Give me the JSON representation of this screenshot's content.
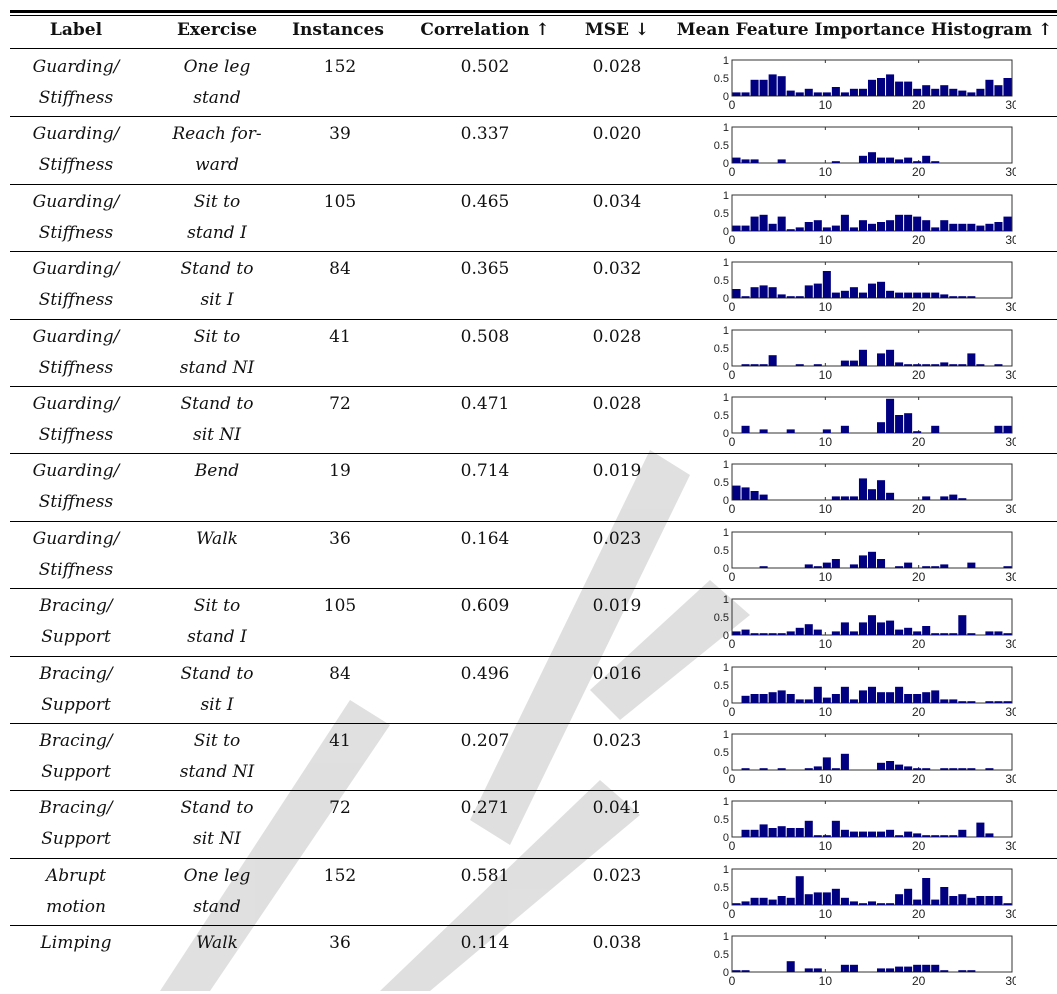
{
  "table": {
    "headers": {
      "label": "Label",
      "exercise": "Exercise",
      "instances": "Instances",
      "correlation": "Correlation ↑",
      "mse": "MSE ↓",
      "histogram": "Mean Feature Importance Histogram ↑"
    },
    "rows": [
      {
        "label1": "Guarding/",
        "label2": "Stiffness",
        "ex1": "One leg",
        "ex2": "stand",
        "instances": "152",
        "correlation": "0.502",
        "mse": "0.028",
        "hist": [
          0.1,
          0.1,
          0.45,
          0.45,
          0.6,
          0.55,
          0.15,
          0.1,
          0.2,
          0.1,
          0.1,
          0.25,
          0.1,
          0.2,
          0.2,
          0.45,
          0.5,
          0.6,
          0.4,
          0.4,
          0.2,
          0.3,
          0.2,
          0.3,
          0.2,
          0.15,
          0.1,
          0.2,
          0.45,
          0.3,
          0.5
        ]
      },
      {
        "label1": "Guarding/",
        "label2": "Stiffness",
        "ex1": "Reach for-",
        "ex2": "ward",
        "instances": "39",
        "correlation": "0.337",
        "mse": "0.020",
        "hist": [
          0.15,
          0.1,
          0.1,
          0,
          0,
          0.1,
          0,
          0,
          0,
          0,
          0,
          0.05,
          0,
          0,
          0.2,
          0.3,
          0.15,
          0.15,
          0.1,
          0.15,
          0.05,
          0.2,
          0.05,
          0,
          0,
          0,
          0,
          0,
          0,
          0,
          0
        ]
      },
      {
        "label1": "Guarding/",
        "label2": "Stiffness",
        "ex1": "Sit to",
        "ex2": "stand I",
        "instances": "105",
        "correlation": "0.465",
        "mse": "0.034",
        "hist": [
          0.15,
          0.15,
          0.4,
          0.45,
          0.2,
          0.4,
          0.05,
          0.1,
          0.25,
          0.3,
          0.1,
          0.15,
          0.45,
          0.1,
          0.3,
          0.2,
          0.25,
          0.3,
          0.45,
          0.45,
          0.4,
          0.3,
          0.1,
          0.3,
          0.2,
          0.2,
          0.2,
          0.15,
          0.2,
          0.25,
          0.4
        ]
      },
      {
        "label1": "Guarding/",
        "label2": "Stiffness",
        "ex1": "Stand to",
        "ex2": "sit I",
        "instances": "84",
        "correlation": "0.365",
        "mse": "0.032",
        "hist": [
          0.25,
          0.05,
          0.3,
          0.35,
          0.3,
          0.1,
          0.05,
          0.05,
          0.35,
          0.4,
          0.75,
          0.15,
          0.2,
          0.3,
          0.15,
          0.4,
          0.45,
          0.2,
          0.15,
          0.15,
          0.15,
          0.15,
          0.15,
          0.1,
          0.05,
          0.05,
          0.05,
          0,
          0,
          0,
          0
        ]
      },
      {
        "label1": "Guarding/",
        "label2": "Stiffness",
        "ex1": "Sit to",
        "ex2": "stand NI",
        "instances": "41",
        "correlation": "0.508",
        "mse": "0.028",
        "hist": [
          0,
          0.05,
          0.05,
          0.05,
          0.3,
          0,
          0,
          0.05,
          0,
          0.05,
          0,
          0,
          0.15,
          0.15,
          0.45,
          0,
          0.35,
          0.45,
          0.1,
          0.05,
          0.05,
          0.05,
          0.05,
          0.1,
          0.05,
          0.05,
          0.35,
          0.05,
          0,
          0.05,
          0
        ]
      },
      {
        "label1": "Guarding/",
        "label2": "Stiffness",
        "ex1": "Stand to",
        "ex2": "sit NI",
        "instances": "72",
        "correlation": "0.471",
        "mse": "0.028",
        "hist": [
          0,
          0.2,
          0,
          0.1,
          0,
          0,
          0.1,
          0,
          0,
          0,
          0.1,
          0,
          0.2,
          0,
          0,
          0,
          0.3,
          0.95,
          0.5,
          0.55,
          0.05,
          0,
          0.2,
          0,
          0,
          0,
          0,
          0,
          0,
          0.2,
          0.2
        ]
      },
      {
        "label1": "Guarding/",
        "label2": "Stiffness",
        "ex1": "Bend",
        "ex2": "",
        "instances": "19",
        "correlation": "0.714",
        "mse": "0.019",
        "hist": [
          0.4,
          0.35,
          0.25,
          0.15,
          0,
          0,
          0,
          0,
          0,
          0,
          0,
          0.1,
          0.1,
          0.1,
          0.6,
          0.3,
          0.55,
          0.2,
          0,
          0,
          0,
          0.1,
          0,
          0.1,
          0.15,
          0.05,
          0,
          0,
          0,
          0,
          0
        ]
      },
      {
        "label1": "Guarding/",
        "label2": "Stiffness",
        "ex1": "Walk",
        "ex2": "",
        "instances": "36",
        "correlation": "0.164",
        "mse": "0.023",
        "hist": [
          0,
          0,
          0,
          0.05,
          0,
          0,
          0,
          0,
          0.1,
          0.05,
          0.15,
          0.25,
          0,
          0.1,
          0.35,
          0.45,
          0.25,
          0,
          0.05,
          0.15,
          0,
          0.05,
          0.05,
          0.1,
          0,
          0,
          0.15,
          0,
          0,
          0,
          0.05
        ]
      },
      {
        "label1": "Bracing/",
        "label2": "Support",
        "ex1": "Sit to",
        "ex2": "stand I",
        "instances": "105",
        "correlation": "0.609",
        "mse": "0.019",
        "hist": [
          0.1,
          0.15,
          0.05,
          0.05,
          0.05,
          0.05,
          0.1,
          0.2,
          0.3,
          0.15,
          0,
          0.1,
          0.35,
          0.1,
          0.35,
          0.55,
          0.35,
          0.4,
          0.15,
          0.2,
          0.1,
          0.25,
          0.05,
          0.05,
          0.05,
          0.55,
          0.05,
          0,
          0.1,
          0.1,
          0.05
        ]
      },
      {
        "label1": "Bracing/",
        "label2": "Support",
        "ex1": "Stand to",
        "ex2": "sit I",
        "instances": "84",
        "correlation": "0.496",
        "mse": "0.016",
        "hist": [
          0,
          0.2,
          0.25,
          0.25,
          0.3,
          0.35,
          0.25,
          0.1,
          0.1,
          0.45,
          0.15,
          0.25,
          0.45,
          0.1,
          0.35,
          0.45,
          0.3,
          0.3,
          0.45,
          0.25,
          0.25,
          0.3,
          0.35,
          0.1,
          0.1,
          0.05,
          0.05,
          0,
          0.05,
          0.05,
          0.05
        ]
      },
      {
        "label1": "Bracing/",
        "label2": "Support",
        "ex1": "Sit to",
        "ex2": "stand NI",
        "instances": "41",
        "correlation": "0.207",
        "mse": "0.023",
        "hist": [
          0,
          0.05,
          0,
          0.05,
          0,
          0.05,
          0,
          0,
          0.05,
          0.1,
          0.35,
          0.05,
          0.45,
          0,
          0,
          0,
          0.2,
          0.25,
          0.15,
          0.1,
          0.05,
          0.05,
          0,
          0.05,
          0.05,
          0.05,
          0.05,
          0,
          0.05,
          0,
          0
        ]
      },
      {
        "label1": "Bracing/",
        "label2": "Support",
        "ex1": "Stand to",
        "ex2": "sit NI",
        "instances": "72",
        "correlation": "0.271",
        "mse": "0.041",
        "hist": [
          0,
          0.2,
          0.2,
          0.35,
          0.25,
          0.3,
          0.25,
          0.25,
          0.45,
          0.05,
          0.05,
          0.45,
          0.2,
          0.15,
          0.15,
          0.15,
          0.15,
          0.2,
          0.05,
          0.15,
          0.1,
          0.05,
          0.05,
          0.05,
          0.05,
          0.2,
          0,
          0.4,
          0.1,
          0,
          0
        ]
      },
      {
        "label1": "Abrupt",
        "label2": "motion",
        "ex1": "One leg",
        "ex2": "stand",
        "instances": "152",
        "correlation": "0.581",
        "mse": "0.023",
        "hist": [
          0.05,
          0.1,
          0.2,
          0.2,
          0.15,
          0.25,
          0.2,
          0.8,
          0.3,
          0.35,
          0.35,
          0.45,
          0.2,
          0.1,
          0.05,
          0.1,
          0.05,
          0.05,
          0.3,
          0.45,
          0.15,
          0.75,
          0.15,
          0.5,
          0.25,
          0.3,
          0.2,
          0.25,
          0.25,
          0.25,
          0.05
        ]
      },
      {
        "label1": "Limping",
        "label2": "",
        "ex1": "Walk",
        "ex2": "",
        "instances": "36",
        "correlation": "0.114",
        "mse": "0.038",
        "hist": [
          0.05,
          0.05,
          0,
          0,
          0,
          0,
          0.3,
          0,
          0.1,
          0.1,
          0,
          0,
          0.2,
          0.2,
          0,
          0,
          0.1,
          0.1,
          0.15,
          0.15,
          0.2,
          0.2,
          0.2,
          0.05,
          0,
          0.05,
          0.05,
          0,
          0,
          0,
          0
        ]
      }
    ]
  },
  "histogram_axis": {
    "y_ticks": [
      "1",
      "0.5",
      "0"
    ],
    "x_ticks": [
      "0",
      "10",
      "20",
      "30"
    ],
    "bar_color": "#000080"
  }
}
